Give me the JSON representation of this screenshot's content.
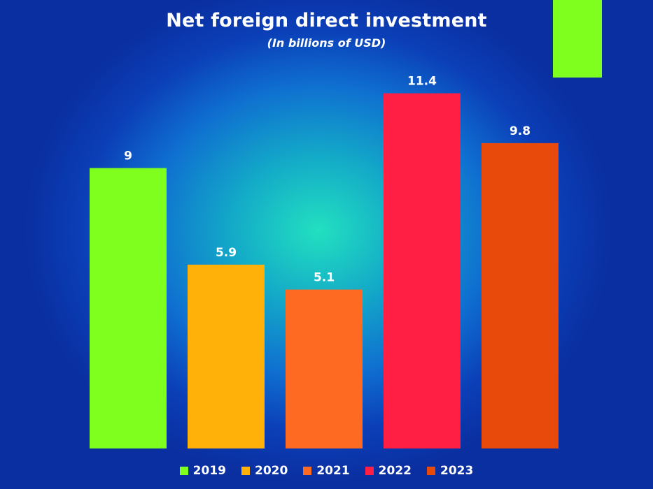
{
  "chart_data": {
    "type": "bar",
    "title": "Net foreign direct investment",
    "subtitle": "(In billions of USD)",
    "categories": [
      "2019",
      "2020",
      "2021",
      "2022",
      "2023"
    ],
    "values": [
      9,
      5.9,
      5.1,
      11.4,
      9.8
    ],
    "data_labels": [
      "9",
      "5.9",
      "5.1",
      "11.4",
      "9.8"
    ],
    "colors": [
      "#7fff1e",
      "#ffb10a",
      "#ff6a22",
      "#ff1f45",
      "#e84a0c"
    ],
    "ylim": [
      0,
      12.6
    ],
    "xlabel": "",
    "ylabel": "",
    "grid": false,
    "legend_position": "bottom"
  },
  "decor": {
    "corner_block_color": "#7fff1e"
  }
}
